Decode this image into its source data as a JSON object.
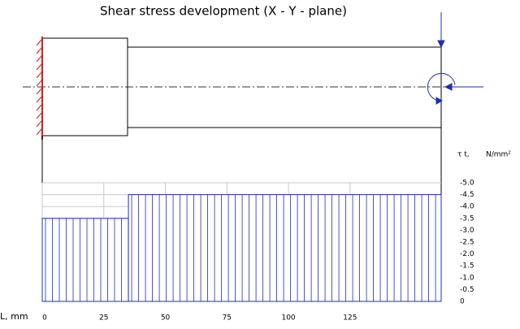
{
  "chart_data": {
    "type": "histogram",
    "title": "Shear stress development (X - Y - plane)",
    "x_label": "L, mm",
    "y_label": "τ t,",
    "y_unit": "N/mm²",
    "bins": [
      0,
      35,
      162
    ],
    "values": [
      -3.5,
      -4.5
    ],
    "color": "#1f2fb0",
    "xlim": [
      0,
      162
    ],
    "xticks": [
      0,
      25,
      50,
      75,
      100,
      125
    ],
    "ylim": [
      0,
      -5
    ],
    "yticks": [
      {
        "value": -5,
        "label": "-5.0"
      },
      -4.5,
      {
        "value": -4,
        "label": "-4.0"
      },
      -3.5,
      {
        "value": -3,
        "label": "-3.0"
      },
      -2.5,
      {
        "value": -2,
        "label": "-2.0"
      },
      -1.5,
      {
        "value": -1,
        "label": "-1.0"
      },
      -0.5,
      0
    ],
    "grid": true
  }
}
